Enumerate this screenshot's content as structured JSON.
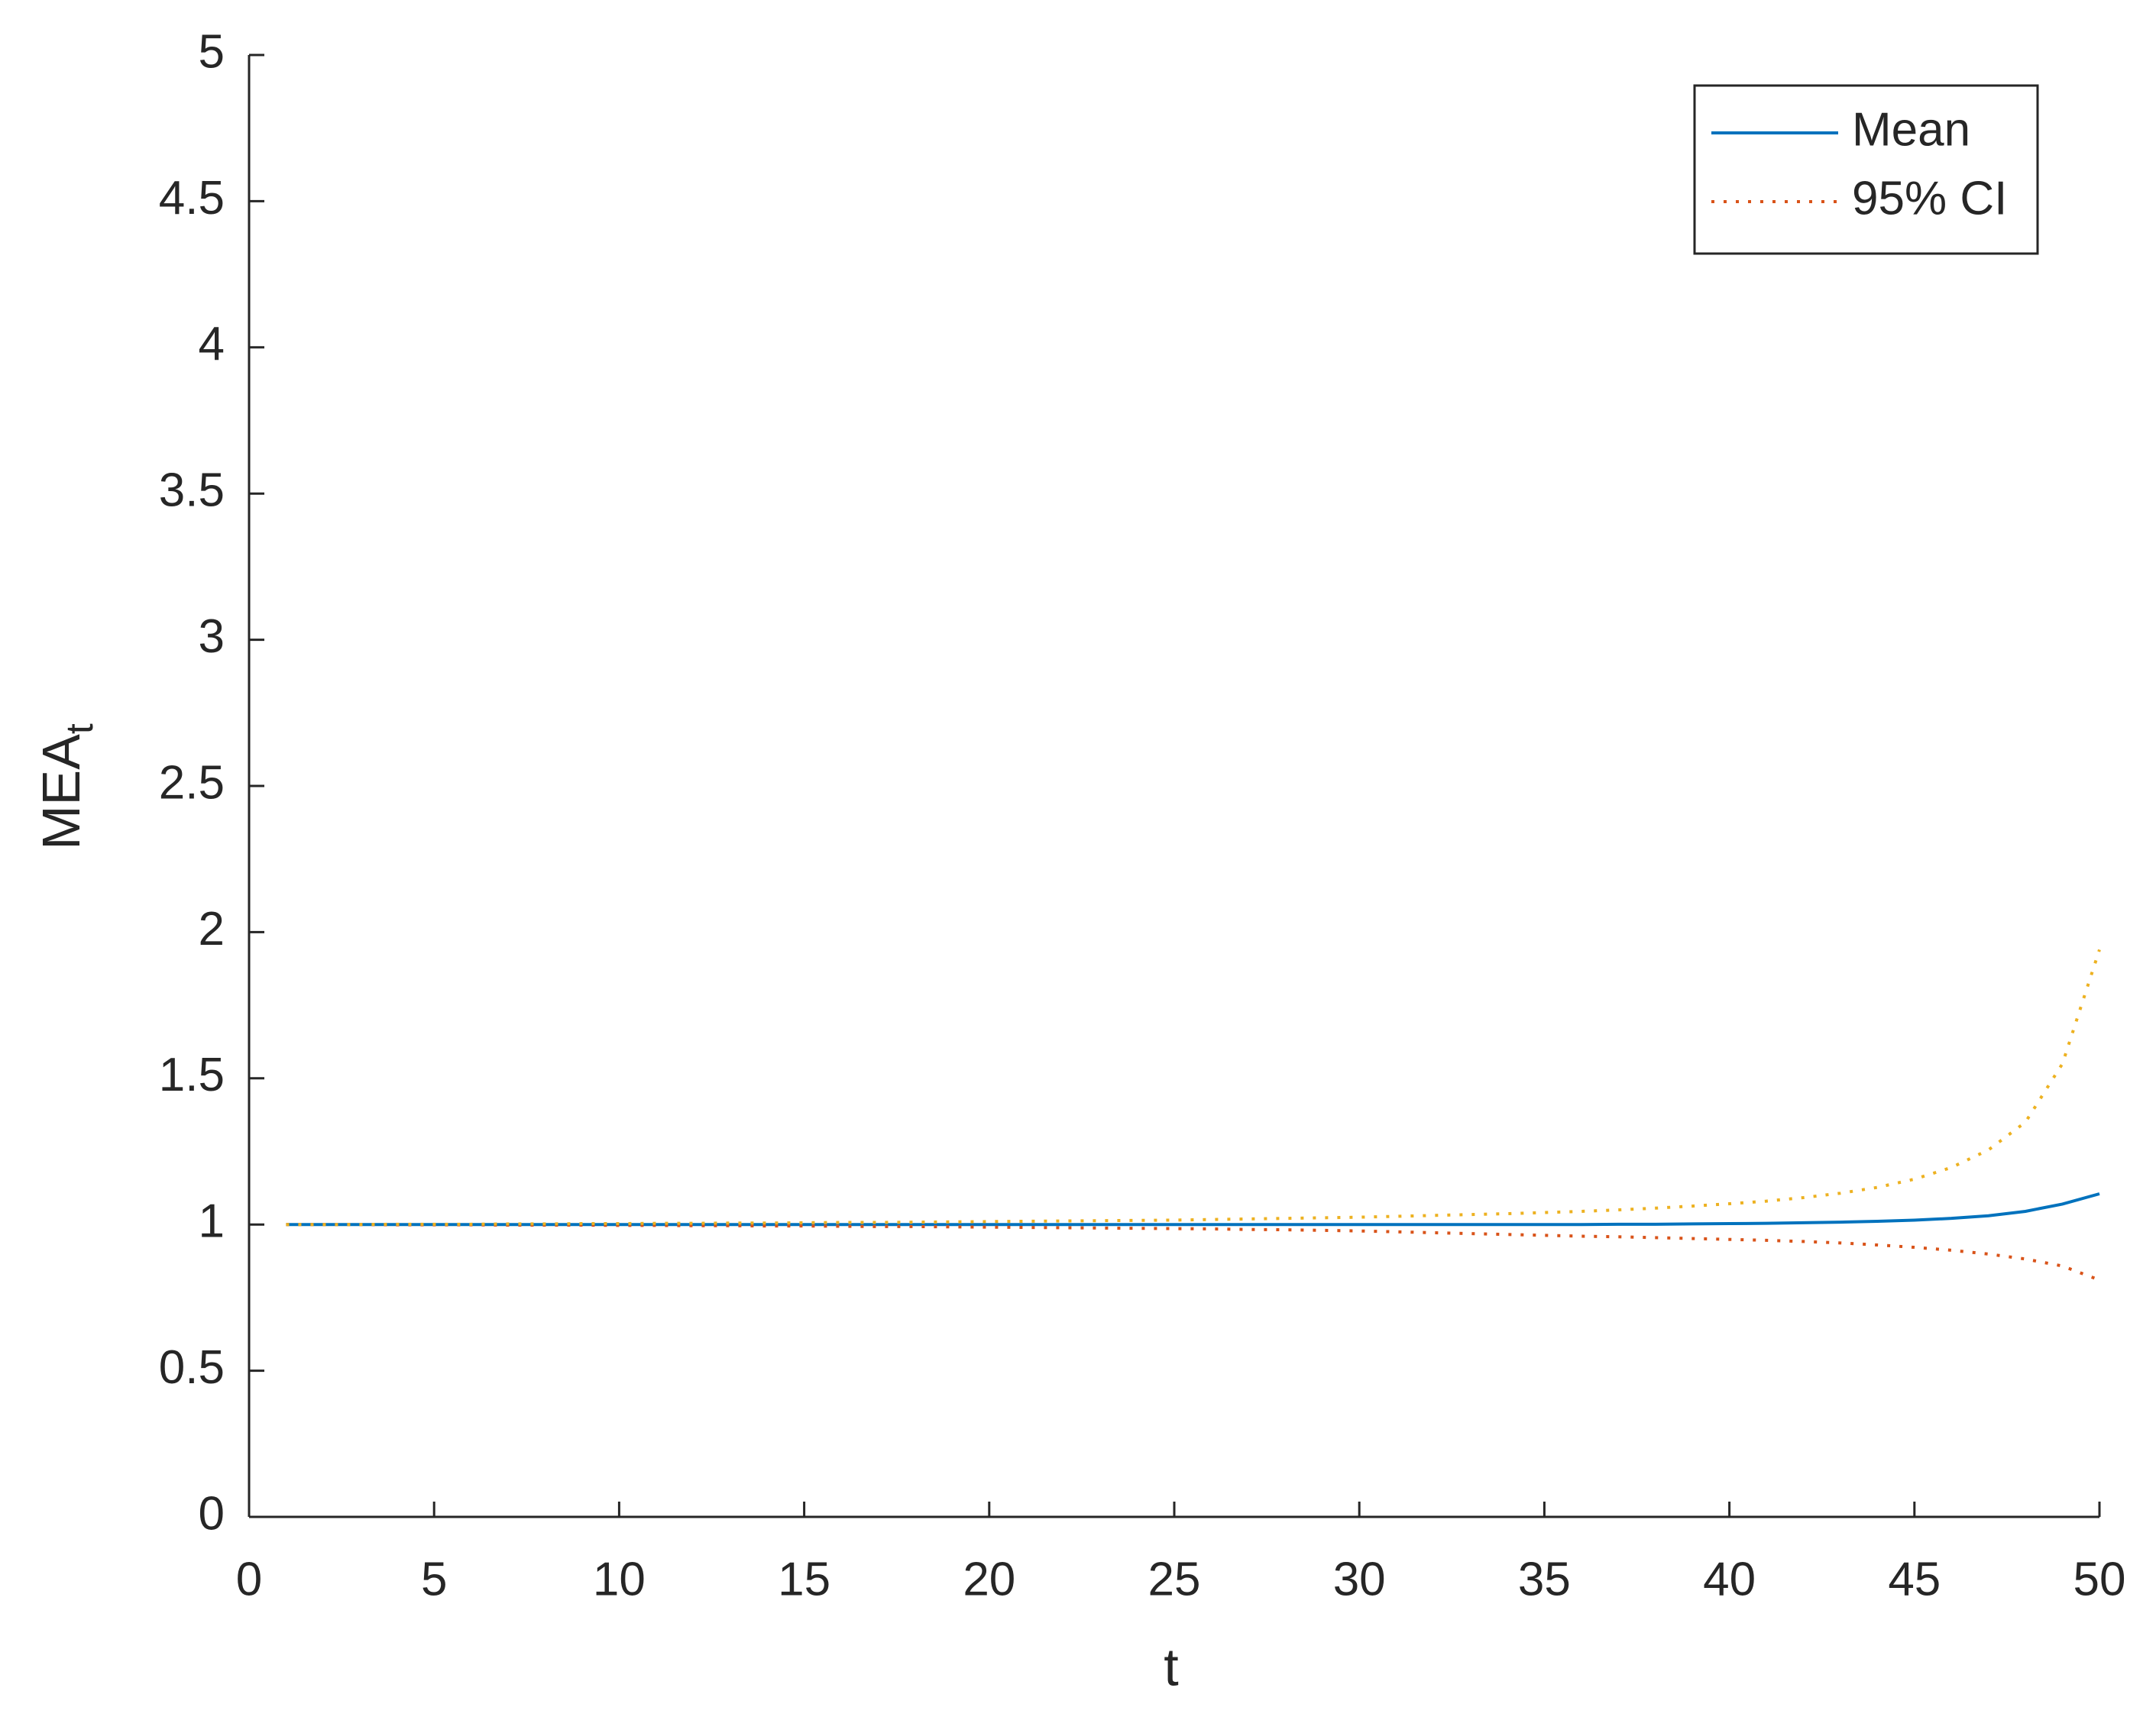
{
  "chart_data": {
    "type": "line",
    "xlabel": "t",
    "ylabel": "MEA",
    "ylabel_subscript": "t",
    "x": [
      1,
      2,
      3,
      4,
      5,
      6,
      7,
      8,
      9,
      10,
      11,
      12,
      13,
      14,
      15,
      16,
      17,
      18,
      19,
      20,
      21,
      22,
      23,
      24,
      25,
      26,
      27,
      28,
      29,
      30,
      31,
      32,
      33,
      34,
      35,
      36,
      37,
      38,
      39,
      40,
      41,
      42,
      43,
      44,
      45,
      46,
      47,
      48,
      49,
      50
    ],
    "xlim": [
      0,
      50
    ],
    "xticks": [
      0,
      5,
      10,
      15,
      20,
      25,
      30,
      35,
      40,
      45,
      50
    ],
    "ylim": [
      0,
      5
    ],
    "yticks": [
      0,
      0.5,
      1,
      1.5,
      2,
      2.5,
      3,
      3.5,
      4,
      4.5,
      5
    ],
    "legend": "upper right",
    "series": [
      {
        "name": "Mean",
        "color": "#0072bd",
        "style": "solid",
        "values": [
          1,
          1,
          1,
          1,
          1,
          1,
          1,
          1,
          1,
          1,
          1,
          1,
          1,
          1,
          1,
          1,
          1,
          1,
          1,
          1,
          1,
          1,
          1,
          1,
          1,
          1,
          1,
          1,
          1,
          1,
          1,
          1,
          1,
          1,
          1,
          1,
          1.001,
          1.001,
          1.002,
          1.003,
          1.004,
          1.006,
          1.008,
          1.011,
          1.015,
          1.021,
          1.03,
          1.045,
          1.07,
          1.105
        ]
      },
      {
        "name": "95% CI",
        "color": "#d95319",
        "style": "dotted",
        "values": [
          1,
          1,
          1,
          0.999,
          0.999,
          0.999,
          0.998,
          0.998,
          0.998,
          0.997,
          0.997,
          0.996,
          0.996,
          0.995,
          0.995,
          0.994,
          0.993,
          0.993,
          0.992,
          0.991,
          0.99,
          0.989,
          0.988,
          0.987,
          0.986,
          0.985,
          0.983,
          0.982,
          0.98,
          0.978,
          0.975,
          0.972,
          0.969,
          0.966,
          0.963,
          0.96,
          0.958,
          0.955,
          0.952,
          0.949,
          0.946,
          0.942,
          0.937,
          0.93,
          0.922,
          0.912,
          0.899,
          0.882,
          0.858,
          0.81
        ]
      },
      {
        "color": "#edb120",
        "style": "dotted",
        "values": [
          1,
          1,
          1,
          1.001,
          1.001,
          1.001,
          1.002,
          1.002,
          1.003,
          1.003,
          1.004,
          1.004,
          1.005,
          1.005,
          1.006,
          1.007,
          1.007,
          1.008,
          1.009,
          1.01,
          1.011,
          1.012,
          1.013,
          1.014,
          1.015,
          1.017,
          1.019,
          1.021,
          1.023,
          1.025,
          1.028,
          1.031,
          1.034,
          1.037,
          1.041,
          1.045,
          1.05,
          1.056,
          1.063,
          1.071,
          1.08,
          1.092,
          1.107,
          1.127,
          1.155,
          1.195,
          1.255,
          1.35,
          1.55,
          1.94
        ]
      }
    ]
  }
}
